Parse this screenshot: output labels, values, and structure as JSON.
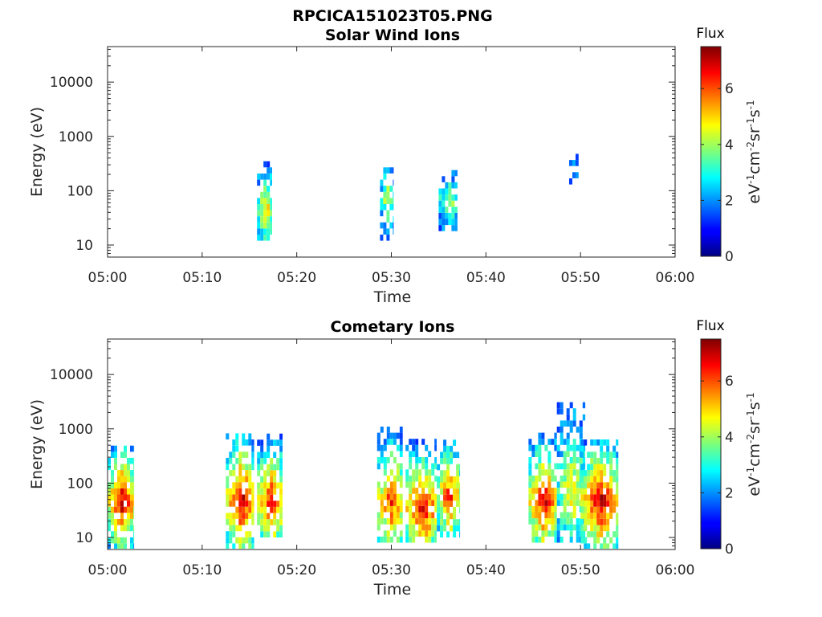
{
  "figure": {
    "title": "RPCICA151023T05.PNG"
  },
  "colors": {
    "axis": "#262626",
    "colormap": "jet"
  },
  "chart_data": [
    {
      "type": "heatmap",
      "title": "Solar Wind Ions",
      "xlabel": "Time",
      "ylabel": "Energy (eV)",
      "x_ticks": [
        "05:00",
        "05:10",
        "05:20",
        "05:30",
        "05:40",
        "05:50",
        "06:00"
      ],
      "xlim_minutes": [
        0,
        60
      ],
      "y_scale": "log",
      "y_ticks": [
        "10",
        "100",
        "1000",
        "10000"
      ],
      "ylim": [
        6,
        45000
      ],
      "colorbar": {
        "title": "Flux",
        "label": "eV-1cm-2sr-1s-1",
        "ticks": [
          "0",
          "2",
          "4",
          "6"
        ],
        "range": [
          0,
          7.5
        ]
      },
      "events": [
        {
          "t_start_min": 15.8,
          "t_end_min": 17.4,
          "e_low": 12,
          "e_high": 330,
          "peak_flux": 5.2,
          "peak_energy": 40
        },
        {
          "t_start_min": 28.8,
          "t_end_min": 30.2,
          "e_low": 12,
          "e_high": 210,
          "peak_flux": 4.6,
          "peak_energy": 60
        },
        {
          "t_start_min": 35.0,
          "t_end_min": 37.0,
          "e_low": 18,
          "e_high": 210,
          "peak_flux": 4.4,
          "peak_energy": 55
        },
        {
          "t_start_min": 48.8,
          "t_end_min": 49.8,
          "e_low": 60,
          "e_high": 400,
          "peak_flux": 2.2,
          "peak_energy": 250
        }
      ]
    },
    {
      "type": "heatmap",
      "title": "Cometary Ions",
      "xlabel": "Time",
      "ylabel": "Energy (eV)",
      "x_ticks": [
        "05:00",
        "05:10",
        "05:20",
        "05:30",
        "05:40",
        "05:50",
        "06:00"
      ],
      "xlim_minutes": [
        0,
        60
      ],
      "y_scale": "log",
      "y_ticks": [
        "10",
        "100",
        "1000",
        "10000"
      ],
      "ylim": [
        6,
        45000
      ],
      "colorbar": {
        "title": "Flux",
        "label": "eV-1cm-2sr-1s-1",
        "ticks": [
          "0",
          "2",
          "4",
          "6"
        ],
        "range": [
          0,
          7.5
        ]
      },
      "events": [
        {
          "t_start_min": 0.0,
          "t_end_min": 2.8,
          "e_low": 6,
          "e_high": 400,
          "peak_flux": 7.2,
          "peak_energy": 40
        },
        {
          "t_start_min": 12.5,
          "t_end_min": 15.5,
          "e_low": 6,
          "e_high": 700,
          "peak_flux": 7.2,
          "peak_energy": 40
        },
        {
          "t_start_min": 15.8,
          "t_end_min": 18.5,
          "e_low": 10,
          "e_high": 800,
          "peak_flux": 6.8,
          "peak_energy": 40
        },
        {
          "t_start_min": 28.5,
          "t_end_min": 31.2,
          "e_low": 8,
          "e_high": 1000,
          "peak_flux": 6.5,
          "peak_energy": 40
        },
        {
          "t_start_min": 31.5,
          "t_end_min": 34.8,
          "e_low": 8,
          "e_high": 600,
          "peak_flux": 7.2,
          "peak_energy": 30
        },
        {
          "t_start_min": 34.8,
          "t_end_min": 37.2,
          "e_low": 10,
          "e_high": 500,
          "peak_flux": 6.5,
          "peak_energy": 50
        },
        {
          "t_start_min": 44.5,
          "t_end_min": 47.5,
          "e_low": 8,
          "e_high": 700,
          "peak_flux": 7.0,
          "peak_energy": 40
        },
        {
          "t_start_min": 47.5,
          "t_end_min": 50.5,
          "e_low": 8,
          "e_high": 4000,
          "peak_flux": 5.0,
          "peak_energy": 60
        },
        {
          "t_start_min": 50.0,
          "t_end_min": 54.0,
          "e_low": 6,
          "e_high": 500,
          "peak_flux": 7.2,
          "peak_energy": 40
        }
      ]
    }
  ]
}
